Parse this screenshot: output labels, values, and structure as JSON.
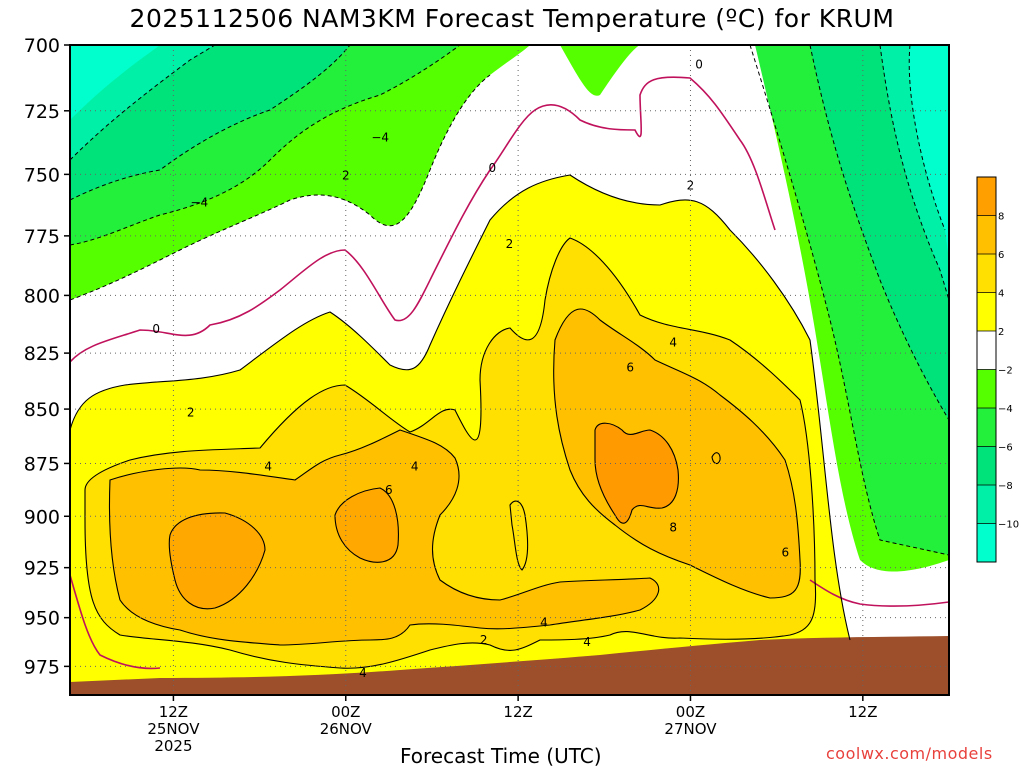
{
  "title": "2025112506 NAM3KM Forecast Temperature (ºC) for KRUM",
  "xlabel": "Forecast Time (UTC)",
  "credit": "coolwx.com/models",
  "chart_data": {
    "type": "heatmap",
    "title": "2025112506 NAM3KM Forecast Temperature (ºC) for KRUM",
    "xlabel": "Forecast Time (UTC)",
    "ylabel": "",
    "ylim": [
      700,
      990
    ],
    "y_scale": "log",
    "x_hours_from_06z_25nov": [
      0,
      51
    ],
    "y_ticks": [
      700,
      725,
      750,
      775,
      800,
      825,
      850,
      875,
      900,
      925,
      950,
      975
    ],
    "x_ticks": [
      {
        "hour": 6,
        "lines": [
          "12Z",
          "25NOV",
          "2025"
        ]
      },
      {
        "hour": 16,
        "lines": [
          "00Z",
          "26NOV"
        ]
      },
      {
        "hour": 26,
        "lines": [
          "12Z"
        ]
      },
      {
        "hour": 36,
        "lines": [
          "00Z",
          "27NOV"
        ]
      },
      {
        "hour": 46,
        "lines": [
          "12Z"
        ]
      }
    ],
    "grid": true,
    "colorbar": {
      "position": "right",
      "levels": [
        -12,
        -10,
        -8,
        -6,
        -4,
        -2,
        2,
        4,
        6,
        8,
        10
      ],
      "labels": [
        "-10",
        "-8",
        "-6",
        "-4",
        "-2",
        "2",
        "4",
        "6",
        "8"
      ],
      "colors": [
        "#00ffcc",
        "#00f0a8",
        "#00e27a",
        "#22f03a",
        "#55ff00",
        "#ffffff",
        "#ffff00",
        "#ffe000",
        "#ffc000",
        "#ffa000"
      ]
    },
    "contour_labels": [
      {
        "text": "0",
        "hour": 5,
        "p": 814
      },
      {
        "text": "0",
        "hour": 24.5,
        "p": 747
      },
      {
        "text": "0",
        "hour": 36.5,
        "p": 707
      },
      {
        "text": "-4",
        "hour": 7.5,
        "p": 761
      },
      {
        "text": "-4",
        "hour": 18,
        "p": 735
      },
      {
        "text": "2",
        "hour": 16,
        "p": 750
      },
      {
        "text": "2",
        "hour": 25.5,
        "p": 778
      },
      {
        "text": "2",
        "hour": 36,
        "p": 754
      },
      {
        "text": "2",
        "hour": 7,
        "p": 851
      },
      {
        "text": "2",
        "hour": 24,
        "p": 961
      },
      {
        "text": "4",
        "hour": 11.5,
        "p": 876
      },
      {
        "text": "4",
        "hour": 20,
        "p": 876
      },
      {
        "text": "4",
        "hour": 17,
        "p": 978
      },
      {
        "text": "4",
        "hour": 27.5,
        "p": 952
      },
      {
        "text": "4",
        "hour": 30,
        "p": 962
      },
      {
        "text": "4",
        "hour": 35,
        "p": 820
      },
      {
        "text": "6",
        "hour": 18.5,
        "p": 887
      },
      {
        "text": "6",
        "hour": 32.5,
        "p": 831
      },
      {
        "text": "6",
        "hour": 41.5,
        "p": 917
      },
      {
        "text": "8",
        "hour": 35,
        "p": 905
      }
    ]
  }
}
